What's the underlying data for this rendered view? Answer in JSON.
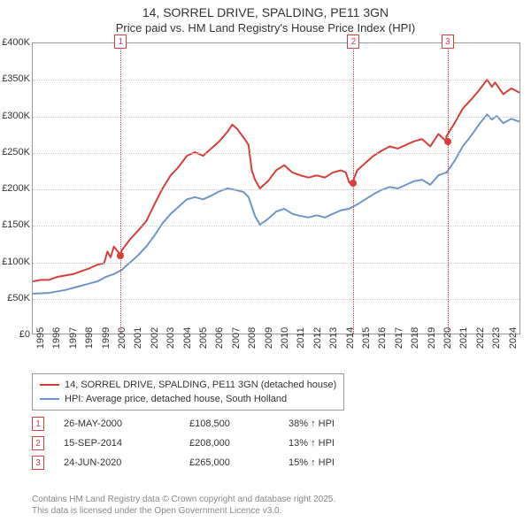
{
  "title": {
    "line1": "14, SORREL DRIVE, SPALDING, PE11 3GN",
    "line2": "Price paid vs. HM Land Registry's House Price Index (HPI)"
  },
  "chart": {
    "type": "line",
    "background_color": "#ffffff",
    "grid_color": "#cccccc",
    "border_color": "#999999",
    "y": {
      "min": 0,
      "max": 400000,
      "tick_step": 50000,
      "ticks": [
        0,
        50000,
        100000,
        150000,
        200000,
        250000,
        300000,
        350000,
        400000
      ],
      "labels": [
        "£0",
        "£50K",
        "£100K",
        "£150K",
        "£200K",
        "£250K",
        "£300K",
        "£350K",
        "£400K"
      ],
      "label_fontsize": 11
    },
    "x": {
      "min": 1995,
      "max": 2025,
      "ticks": [
        1995,
        1996,
        1997,
        1998,
        1999,
        2000,
        2001,
        2002,
        2003,
        2004,
        2005,
        2006,
        2007,
        2008,
        2009,
        2010,
        2011,
        2012,
        2013,
        2014,
        2015,
        2016,
        2017,
        2018,
        2019,
        2020,
        2021,
        2022,
        2023,
        2024
      ],
      "label_fontsize": 11
    },
    "series": [
      {
        "name": "14, SORREL DRIVE, SPALDING, PE11 3GN (detached house)",
        "color": "#d43f3a",
        "line_width": 2,
        "points": [
          [
            1995,
            72000
          ],
          [
            1995.5,
            74000
          ],
          [
            1996,
            74000
          ],
          [
            1996.5,
            78000
          ],
          [
            1997,
            80000
          ],
          [
            1997.5,
            82000
          ],
          [
            1998,
            86000
          ],
          [
            1998.5,
            90000
          ],
          [
            1999,
            95000
          ],
          [
            1999.4,
            97000
          ],
          [
            1999.6,
            113000
          ],
          [
            1999.8,
            105000
          ],
          [
            2000,
            120000
          ],
          [
            2000.4,
            108500
          ],
          [
            2000.5,
            115000
          ],
          [
            2001,
            130000
          ],
          [
            2001.5,
            142000
          ],
          [
            2002,
            155000
          ],
          [
            2002.5,
            178000
          ],
          [
            2003,
            200000
          ],
          [
            2003.5,
            218000
          ],
          [
            2004,
            230000
          ],
          [
            2004.5,
            245000
          ],
          [
            2005,
            250000
          ],
          [
            2005.5,
            245000
          ],
          [
            2006,
            255000
          ],
          [
            2006.5,
            265000
          ],
          [
            2007,
            278000
          ],
          [
            2007.3,
            288000
          ],
          [
            2007.6,
            282000
          ],
          [
            2008,
            270000
          ],
          [
            2008.3,
            260000
          ],
          [
            2008.5,
            225000
          ],
          [
            2008.7,
            212000
          ],
          [
            2009,
            200000
          ],
          [
            2009.5,
            210000
          ],
          [
            2010,
            225000
          ],
          [
            2010.5,
            232000
          ],
          [
            2011,
            222000
          ],
          [
            2011.5,
            218000
          ],
          [
            2012,
            215000
          ],
          [
            2012.5,
            218000
          ],
          [
            2013,
            215000
          ],
          [
            2013.5,
            222000
          ],
          [
            2014,
            225000
          ],
          [
            2014.3,
            222000
          ],
          [
            2014.5,
            208000
          ],
          [
            2014.7,
            208000
          ],
          [
            2015,
            225000
          ],
          [
            2015.5,
            235000
          ],
          [
            2016,
            245000
          ],
          [
            2016.5,
            252000
          ],
          [
            2017,
            258000
          ],
          [
            2017.5,
            255000
          ],
          [
            2018,
            260000
          ],
          [
            2018.5,
            265000
          ],
          [
            2019,
            268000
          ],
          [
            2019.5,
            258000
          ],
          [
            2020,
            275000
          ],
          [
            2020.48,
            265000
          ],
          [
            2020.5,
            272000
          ],
          [
            2021,
            290000
          ],
          [
            2021.5,
            310000
          ],
          [
            2022,
            322000
          ],
          [
            2022.5,
            335000
          ],
          [
            2023,
            350000
          ],
          [
            2023.3,
            340000
          ],
          [
            2023.5,
            346000
          ],
          [
            2024,
            330000
          ],
          [
            2024.5,
            338000
          ],
          [
            2025,
            332000
          ]
        ]
      },
      {
        "name": "HPI: Average price, detached house, South Holland",
        "color": "#6e95c8",
        "line_width": 2,
        "points": [
          [
            1995,
            55000
          ],
          [
            1996,
            56000
          ],
          [
            1997,
            60000
          ],
          [
            1998,
            66000
          ],
          [
            1998.5,
            69000
          ],
          [
            1999,
            72000
          ],
          [
            1999.5,
            78000
          ],
          [
            2000,
            82000
          ],
          [
            2000.5,
            88000
          ],
          [
            2001,
            98000
          ],
          [
            2001.5,
            108000
          ],
          [
            2002,
            120000
          ],
          [
            2002.5,
            135000
          ],
          [
            2003,
            152000
          ],
          [
            2003.5,
            165000
          ],
          [
            2004,
            175000
          ],
          [
            2004.5,
            185000
          ],
          [
            2005,
            188000
          ],
          [
            2005.5,
            185000
          ],
          [
            2006,
            190000
          ],
          [
            2006.5,
            196000
          ],
          [
            2007,
            200000
          ],
          [
            2007.5,
            198000
          ],
          [
            2008,
            195000
          ],
          [
            2008.3,
            188000
          ],
          [
            2008.7,
            162000
          ],
          [
            2009,
            150000
          ],
          [
            2009.5,
            158000
          ],
          [
            2010,
            168000
          ],
          [
            2010.5,
            172000
          ],
          [
            2011,
            165000
          ],
          [
            2011.5,
            162000
          ],
          [
            2012,
            160000
          ],
          [
            2012.5,
            163000
          ],
          [
            2013,
            160000
          ],
          [
            2013.5,
            165000
          ],
          [
            2014,
            170000
          ],
          [
            2014.5,
            172000
          ],
          [
            2015,
            178000
          ],
          [
            2015.5,
            185000
          ],
          [
            2016,
            192000
          ],
          [
            2016.5,
            198000
          ],
          [
            2017,
            202000
          ],
          [
            2017.5,
            200000
          ],
          [
            2018,
            205000
          ],
          [
            2018.5,
            210000
          ],
          [
            2019,
            212000
          ],
          [
            2019.5,
            205000
          ],
          [
            2020,
            218000
          ],
          [
            2020.5,
            222000
          ],
          [
            2021,
            238000
          ],
          [
            2021.5,
            258000
          ],
          [
            2022,
            272000
          ],
          [
            2022.5,
            288000
          ],
          [
            2023,
            302000
          ],
          [
            2023.3,
            295000
          ],
          [
            2023.6,
            300000
          ],
          [
            2024,
            290000
          ],
          [
            2024.5,
            296000
          ],
          [
            2025,
            292000
          ]
        ]
      }
    ],
    "markers": [
      {
        "num": "1",
        "x": 2000.4,
        "y": 108500
      },
      {
        "num": "2",
        "x": 2014.7,
        "y": 208000
      },
      {
        "num": "3",
        "x": 2020.48,
        "y": 265000
      }
    ],
    "marker_color": "#d43f3a"
  },
  "legend": {
    "items": [
      {
        "color": "#d43f3a",
        "label": "14, SORREL DRIVE, SPALDING, PE11 3GN (detached house)"
      },
      {
        "color": "#6e95c8",
        "label": "HPI: Average price, detached house, South Holland"
      }
    ]
  },
  "events": [
    {
      "num": "1",
      "date": "26-MAY-2000",
      "price": "£108,500",
      "pct": "38% ↑ HPI"
    },
    {
      "num": "2",
      "date": "15-SEP-2014",
      "price": "£208,000",
      "pct": "13% ↑ HPI"
    },
    {
      "num": "3",
      "date": "24-JUN-2020",
      "price": "£265,000",
      "pct": "15% ↑ HPI"
    }
  ],
  "footer": {
    "line1": "Contains HM Land Registry data © Crown copyright and database right 2025.",
    "line2": "This data is licensed under the Open Government Licence v3.0."
  }
}
